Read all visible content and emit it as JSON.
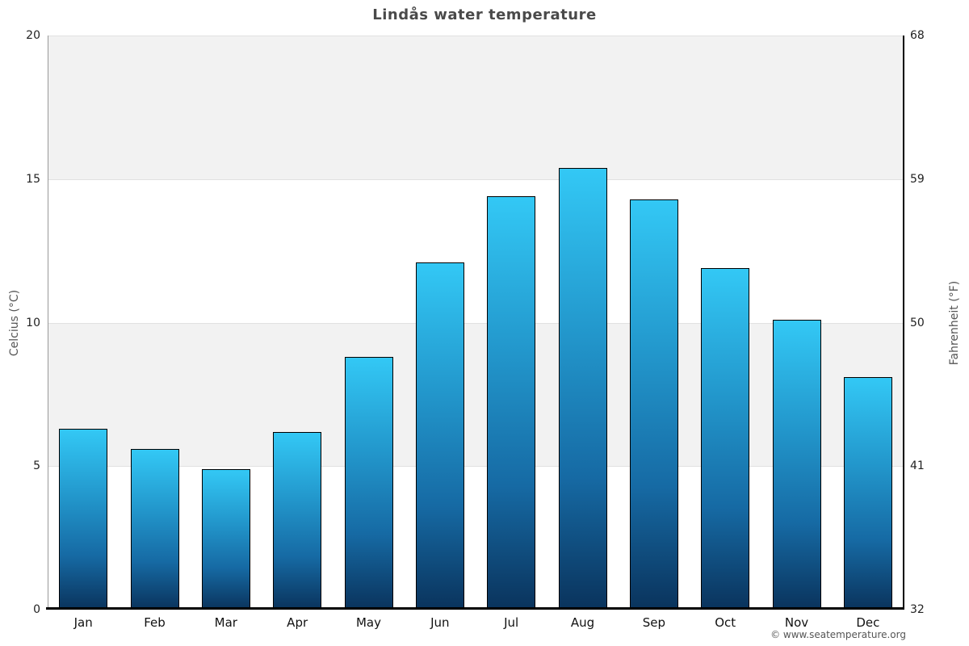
{
  "page": {
    "credit": "© www.seatemperature.org"
  },
  "chart_data": {
    "type": "bar",
    "title": "Lindås water temperature",
    "categories": [
      "Jan",
      "Feb",
      "Mar",
      "Apr",
      "May",
      "Jun",
      "Jul",
      "Aug",
      "Sep",
      "Oct",
      "Nov",
      "Dec"
    ],
    "values": [
      6.3,
      5.6,
      4.9,
      6.2,
      8.8,
      12.1,
      14.4,
      15.4,
      14.3,
      11.9,
      10.1,
      8.1
    ],
    "xlabel": "",
    "y_axis_left": {
      "label": "Celcius (°C)",
      "ticks": [
        0,
        5,
        10,
        15,
        20
      ],
      "range": [
        0,
        20
      ]
    },
    "y_axis_right": {
      "label": "Fahrenheit (°F)",
      "ticks": [
        32,
        41,
        50,
        59,
        68
      ]
    },
    "legend": "none",
    "grid": "horizontal gridlines every 5°C with alternating shaded bands (5-10, 15-20)",
    "colors": {
      "bar_gradient_top": "#33c8f5",
      "bar_gradient_mid": "#2296cb",
      "bar_gradient_bottom": "#0a335c",
      "bar_border": "#000000",
      "band_shade": "#f2f2f2",
      "background": "#ffffff",
      "title_text": "#4a4a4a"
    }
  }
}
